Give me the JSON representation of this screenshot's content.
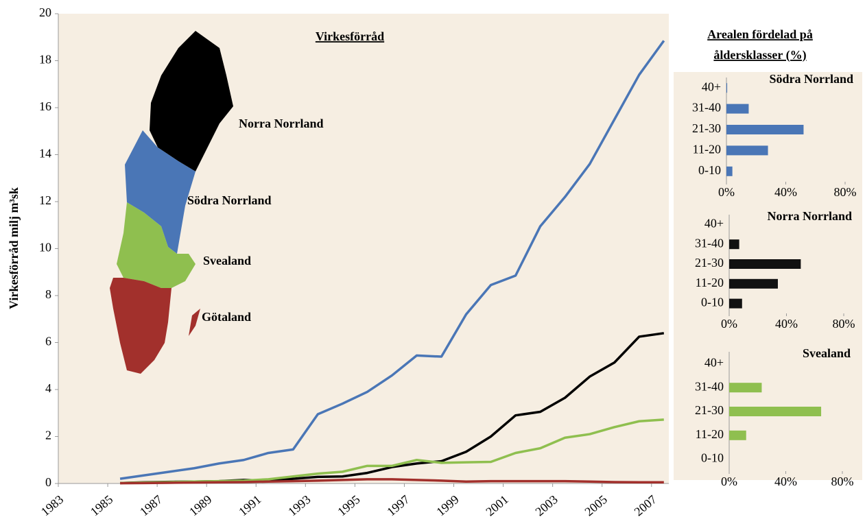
{
  "heading": [
    "Arealen fördelad på",
    "åldersklasser (%)"
  ],
  "chart_data": [
    {
      "type": "line",
      "title": "Virkesförråd",
      "y_label": "Virkesförråd milj m³sk",
      "x": [
        1985.5,
        1986.5,
        1987.5,
        1988.5,
        1989.5,
        1990.5,
        1991.5,
        1992.5,
        1993.5,
        1994.5,
        1995.5,
        1996.5,
        1997.5,
        1998.5,
        1999.5,
        2000.5,
        2001.5,
        2002.5,
        2003.5,
        2004.5,
        2005.5,
        2006.5,
        2007.5
      ],
      "xlim": [
        1983,
        2007.7
      ],
      "xticks": [
        1983,
        1985,
        1987,
        1989,
        1991,
        1993,
        1995,
        1997,
        1999,
        2001,
        2003,
        2005,
        2007
      ],
      "ylim": [
        0,
        20
      ],
      "yticks": [
        0,
        2,
        4,
        6,
        8,
        10,
        12,
        14,
        16,
        18,
        20
      ],
      "series": [
        {
          "name": "Södra Norrland",
          "color": "#4a76b6",
          "values": [
            0.2,
            0.35,
            0.5,
            0.65,
            0.85,
            1.0,
            1.3,
            1.45,
            2.95,
            3.4,
            3.9,
            4.6,
            5.45,
            5.4,
            7.2,
            8.45,
            8.85,
            10.95,
            12.2,
            13.6,
            15.5,
            17.4,
            18.85
          ]
        },
        {
          "name": "Norra Norrland",
          "color": "#000000",
          "values": [
            0.02,
            0.05,
            0.07,
            0.08,
            0.1,
            0.15,
            0.12,
            0.2,
            0.28,
            0.3,
            0.45,
            0.7,
            0.85,
            0.95,
            1.35,
            2.0,
            2.9,
            3.05,
            3.65,
            4.55,
            5.15,
            6.25,
            6.4
          ]
        },
        {
          "name": "Svealand",
          "color": "#8fbf4f",
          "values": [
            0.02,
            0.04,
            0.06,
            0.08,
            0.1,
            0.12,
            0.18,
            0.3,
            0.42,
            0.5,
            0.75,
            0.75,
            1.0,
            0.88,
            0.9,
            0.92,
            1.3,
            1.5,
            1.95,
            2.1,
            2.4,
            2.65,
            2.72
          ]
        },
        {
          "name": "Götaland",
          "color": "#a2302c",
          "values": [
            0.01,
            0.02,
            0.03,
            0.04,
            0.05,
            0.06,
            0.08,
            0.1,
            0.12,
            0.15,
            0.18,
            0.18,
            0.15,
            0.12,
            0.08,
            0.1,
            0.1,
            0.1,
            0.1,
            0.08,
            0.06,
            0.05,
            0.05
          ]
        }
      ]
    },
    {
      "type": "barh",
      "title": "Södra Norrland",
      "color": "#4a76b6",
      "categories": [
        "40+",
        "31-40",
        "21-30",
        "11-20",
        "0-10"
      ],
      "values": [
        0.5,
        15,
        52,
        28,
        4
      ],
      "xlim": [
        0,
        80
      ],
      "xticks": [
        {
          "value": 0,
          "label": "0%"
        },
        {
          "value": 40,
          "label": "40%"
        },
        {
          "value": 80,
          "label": "80%"
        }
      ]
    },
    {
      "type": "barh",
      "title": "Norra Norrland",
      "color": "#111111",
      "categories": [
        "40+",
        "31-40",
        "21-30",
        "11-20",
        "0-10"
      ],
      "values": [
        0,
        7,
        50,
        34,
        9
      ],
      "xlim": [
        0,
        80
      ],
      "xticks": [
        {
          "value": 0,
          "label": "0%"
        },
        {
          "value": 40,
          "label": "40%"
        },
        {
          "value": 80,
          "label": "80%"
        }
      ]
    },
    {
      "type": "barh",
      "title": "Svealand",
      "color": "#8fbf4f",
      "categories": [
        "40+",
        "31-40",
        "21-30",
        "11-20",
        "0-10"
      ],
      "values": [
        0,
        23,
        65,
        12,
        0
      ],
      "xlim": [
        0,
        80
      ],
      "xticks": [
        {
          "value": 0,
          "label": "0%"
        },
        {
          "value": 40,
          "label": "40%"
        },
        {
          "value": 80,
          "label": "80%"
        }
      ]
    }
  ]
}
